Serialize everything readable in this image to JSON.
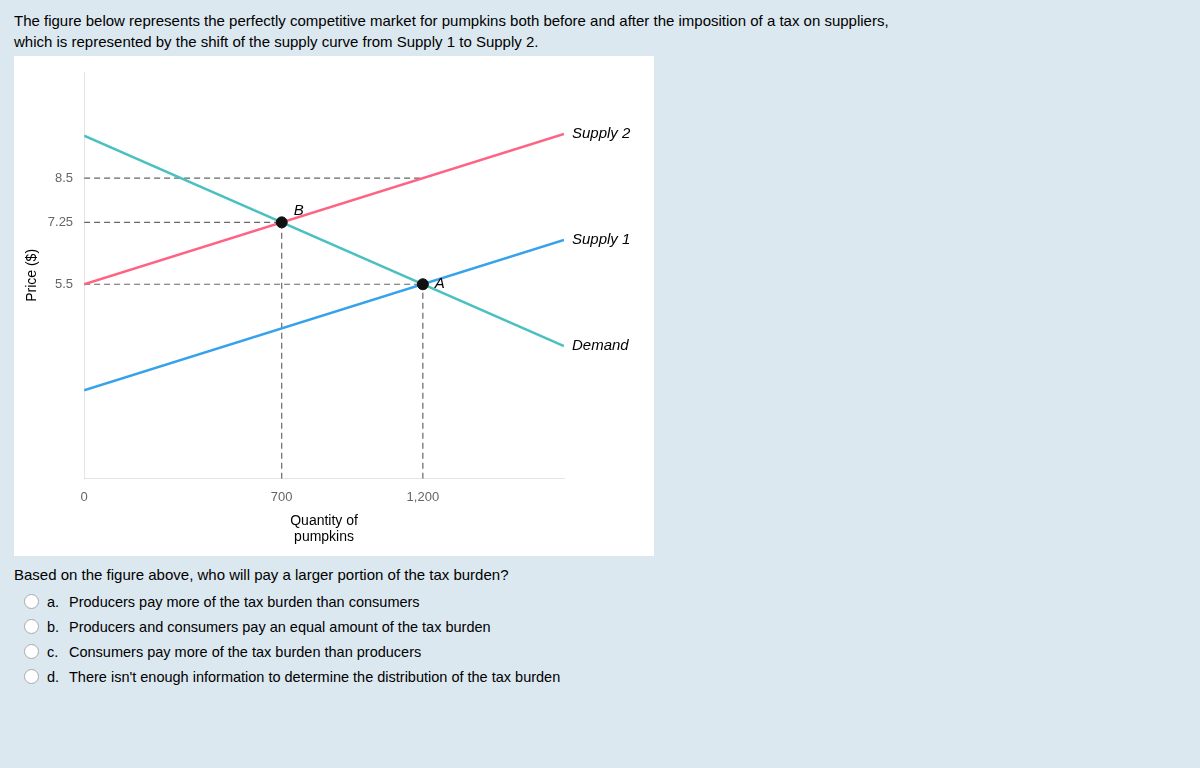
{
  "chart_data": {
    "type": "line",
    "title": [
      "The figure below represents the perfectly competitive market for pumpkins both before and after the imposition of a tax on suppliers,",
      "which is represented by the shift of the supply curve from Supply 1 to Supply 2."
    ],
    "xlabel": [
      "Quantity of",
      "pumpkins"
    ],
    "ylabel": "Price ($)",
    "x": [
      0,
      1700
    ],
    "series": [
      {
        "name": "Supply 1",
        "values": [
          2.5,
          6.75
        ]
      },
      {
        "name": "Supply 2",
        "values": [
          5.5,
          9.75
        ]
      },
      {
        "name": "Demand",
        "values": [
          9.7,
          3.75
        ]
      }
    ],
    "reference_lines": [
      {
        "x": [
          0,
          1200
        ],
        "y": [
          8.5,
          8.5
        ],
        "line_style": "dashed"
      },
      {
        "x": [
          0,
          700
        ],
        "y": [
          7.25,
          7.25
        ],
        "line_style": "dashed"
      },
      {
        "x": [
          0,
          1200
        ],
        "y": [
          5.5,
          5.5
        ],
        "line_style": "dashed"
      },
      {
        "x": [
          700,
          700
        ],
        "y": [
          0,
          7.25
        ],
        "line_style": "dashed"
      },
      {
        "x": [
          1200,
          1200
        ],
        "y": [
          0,
          5.5
        ],
        "line_style": "dashed"
      }
    ],
    "points": [
      {
        "label": "A",
        "x": 1200,
        "y": 5.5,
        "marker": "circle"
      },
      {
        "label": "B",
        "x": 700,
        "y": 7.25,
        "marker": "circle"
      }
    ],
    "xlim": [
      0,
      1700
    ],
    "ylim": [
      0,
      11.5
    ],
    "xticks": [
      0,
      700,
      {
        "value": 1200,
        "label": "1,200"
      }
    ],
    "yticks": [
      5.5,
      7.25,
      8.5
    ],
    "grid": false,
    "question": "Based on the figure above, who will pay a larger portion of the tax burden?",
    "choices": [
      [
        "a.",
        "Producers pay more of the tax burden than consumers"
      ],
      [
        "b.",
        "Producers and consumers pay an equal amount of the tax burden"
      ],
      [
        "c.",
        "Consumers pay more of the tax burden than producers"
      ],
      [
        "d.",
        "There isn't enough information to determine the distribution of the tax burden"
      ]
    ]
  }
}
